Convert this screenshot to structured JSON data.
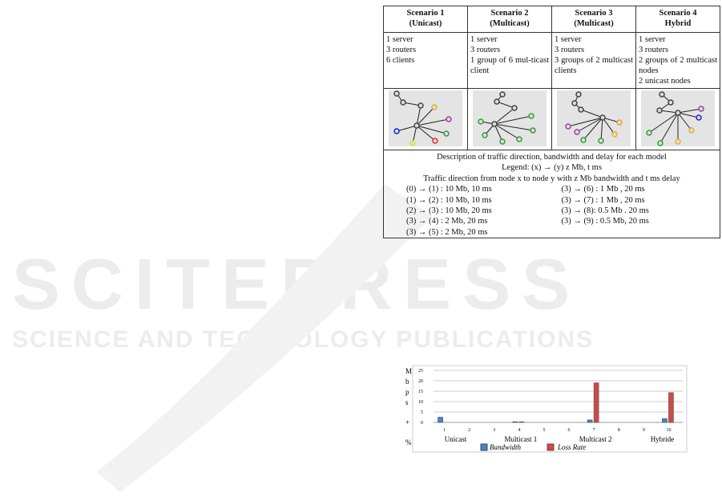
{
  "watermark": {
    "line1": "SCITEPRESS",
    "line2": "SCIENCE AND TECHNOLOGY PUBLICATIONS"
  },
  "table": {
    "headers": [
      {
        "l1": "Scenario 1",
        "l2": "(Unicast)"
      },
      {
        "l1": "Scenario 2",
        "l2": "(Multicast)"
      },
      {
        "l1": "Scenario 3",
        "l2": "(Multicast)"
      },
      {
        "l1": "Scenario 4",
        "l2": "Hybrid"
      }
    ],
    "descriptions": [
      [
        "1 server",
        "3 routers",
        "6 clients"
      ],
      [
        "1 server",
        "3 routers",
        "1 group of 6 mul-ticast client"
      ],
      [
        "1 server",
        "3 routers",
        "3 groups of 2 multicast clients"
      ],
      [
        "1 server",
        "3 routers",
        "2 groups of 2 multicast nodes",
        "2 unicast nodes"
      ]
    ],
    "bottom": {
      "title": "Description of traffic direction, bandwidth and delay for each model",
      "legend": "Legend: (x) → (y) z Mb, t ms",
      "direction": "Traffic direction from node x to node y with z Mb bandwidth and t ms delay",
      "left": [
        "(0) → (1) : 10 Mb, 10 ms",
        "(1) → (2) : 10 Mb, 10 ms",
        "(2) → (3) : 10 Mb, 20 ms",
        "(3) → (4) : 2 Mb, 20 ms",
        "(3) → (5) : 2 Mb, 20 ms"
      ],
      "right": [
        "(3) → (6) : 1 Mb , 20 ms",
        "(3) → (7) : 1 Mb , 20 ms",
        "(3) → (8): 0.5 Mb . 20 ms",
        "(3) → (9) : 0.5 Mb, 20 ms"
      ]
    }
  },
  "chart_data": {
    "type": "bar",
    "ylabel": "M b p s + %",
    "ylim": [
      0,
      25
    ],
    "yticks": [
      0,
      5,
      10,
      15,
      20,
      25
    ],
    "grid": true,
    "categories": [
      "1",
      "2",
      "3",
      "4",
      "5",
      "6",
      "7",
      "8",
      "9",
      "10"
    ],
    "group_labels": [
      "Unicast",
      "Multicast 1",
      "Multicast 2",
      "Hybride"
    ],
    "series": [
      {
        "name": "Bandwidth",
        "color": "#4f81bd",
        "values": [
          2.5,
          0,
          0,
          0.3,
          0,
          0,
          1.2,
          0,
          0,
          1.8
        ]
      },
      {
        "name": "Loss Rate",
        "color": "#c0504d",
        "values": [
          0,
          0,
          0,
          0.3,
          0,
          0,
          19,
          0,
          0,
          14.3
        ]
      }
    ],
    "legend": "bottom"
  }
}
